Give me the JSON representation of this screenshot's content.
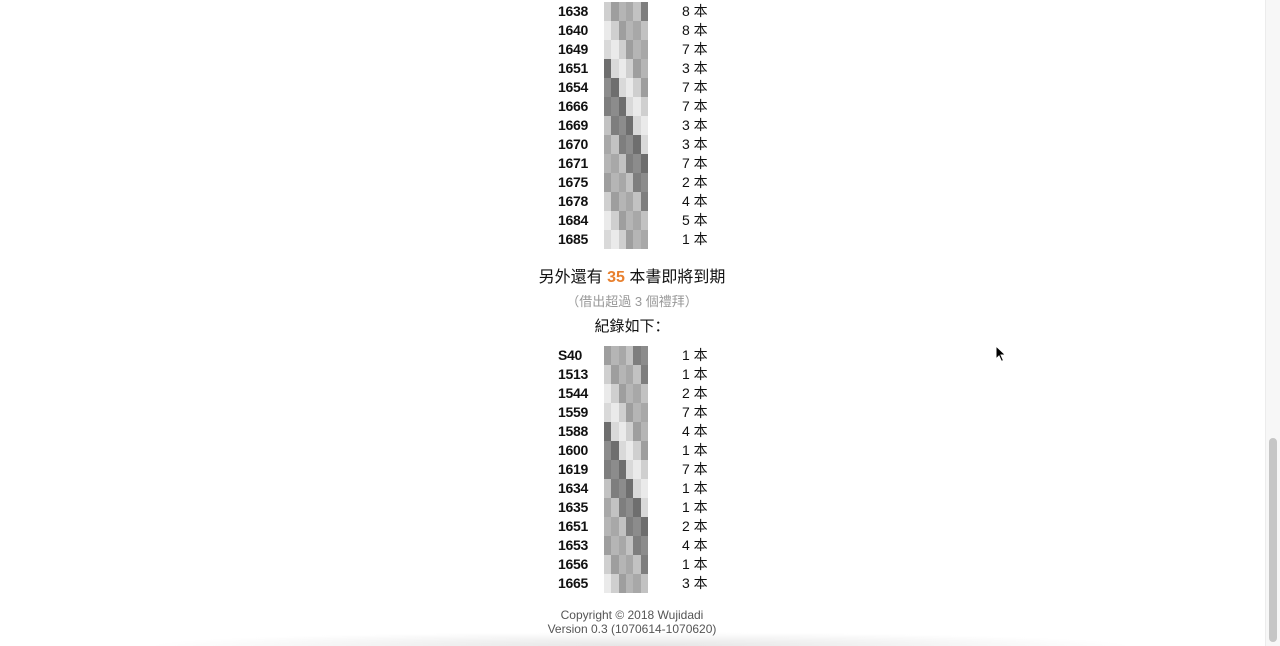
{
  "unit_label": "本",
  "top_list": [
    {
      "id": "1638",
      "count": "8 本"
    },
    {
      "id": "1640",
      "count": "8 本"
    },
    {
      "id": "1649",
      "count": "7 本"
    },
    {
      "id": "1651",
      "count": "3 本"
    },
    {
      "id": "1654",
      "count": "7 本"
    },
    {
      "id": "1666",
      "count": "7 本"
    },
    {
      "id": "1669",
      "count": "3 本"
    },
    {
      "id": "1670",
      "count": "3 本"
    },
    {
      "id": "1671",
      "count": "7 本"
    },
    {
      "id": "1675",
      "count": "2 本"
    },
    {
      "id": "1678",
      "count": "4 本"
    },
    {
      "id": "1684",
      "count": "5 本"
    },
    {
      "id": "1685",
      "count": "1 本"
    }
  ],
  "notice": {
    "prefix": "另外還有",
    "number": "35",
    "suffix": "本書即將到期",
    "sub": "（借出超過 3 個禮拜）",
    "records_heading": "紀錄如下："
  },
  "bottom_list": [
    {
      "id": "S40",
      "count": "1 本"
    },
    {
      "id": "1513",
      "count": "1 本"
    },
    {
      "id": "1544",
      "count": "2 本"
    },
    {
      "id": "1559",
      "count": "7 本"
    },
    {
      "id": "1588",
      "count": "4 本"
    },
    {
      "id": "1600",
      "count": "1 本"
    },
    {
      "id": "1619",
      "count": "7 本"
    },
    {
      "id": "1634",
      "count": "1 本"
    },
    {
      "id": "1635",
      "count": "1 本"
    },
    {
      "id": "1651",
      "count": "2 本"
    },
    {
      "id": "1653",
      "count": "4 本"
    },
    {
      "id": "1656",
      "count": "1 本"
    },
    {
      "id": "1665",
      "count": "3 本"
    }
  ],
  "footer": {
    "copyright": "Copyright © 2018 Wujidadi",
    "version": "Version 0.3 (1070614-1070620)"
  },
  "colors": {
    "accent_number": "#e8802e",
    "muted_text": "#999999"
  },
  "icons": {
    "cursor": "mouse-pointer-icon",
    "redacted_name": "pixelated-name-icon"
  }
}
